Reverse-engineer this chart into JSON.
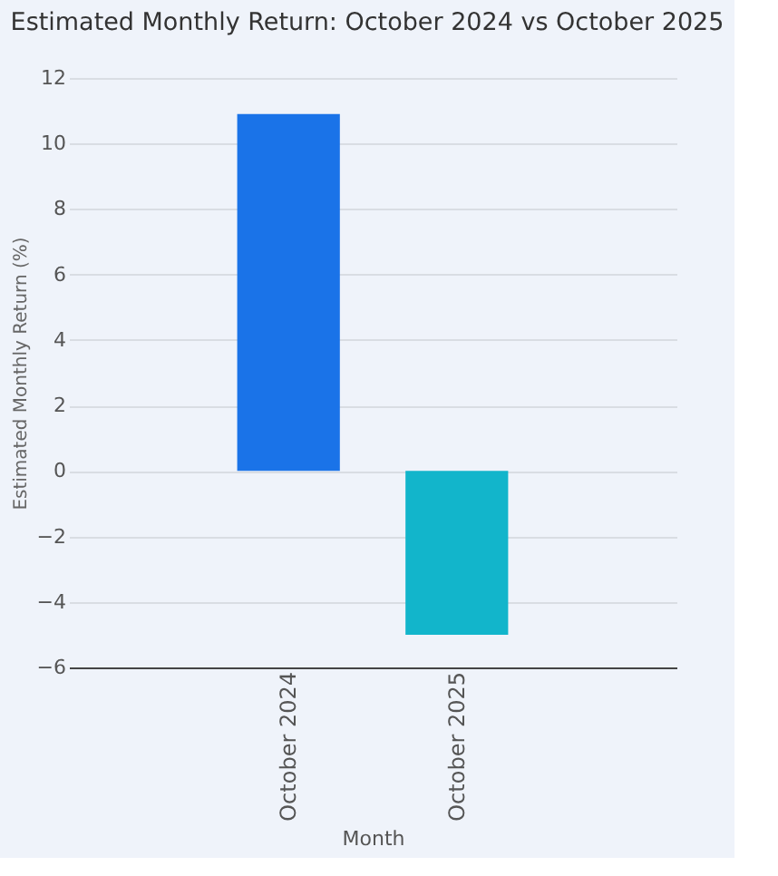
{
  "chart_data": {
    "type": "bar",
    "title": "Estimated Monthly Return: October 2024 vs October 2025",
    "xlabel": "Month",
    "ylabel": "Estimated Monthly Return (%)",
    "categories": [
      "October 2024",
      "October 2025"
    ],
    "values": [
      10.9,
      -5.0
    ],
    "colors": [
      "#1a73e8",
      "#12b5cb"
    ],
    "ylim": [
      -6,
      12
    ],
    "yticks": [
      -6,
      -4,
      -2,
      0,
      2,
      4,
      6,
      8,
      10,
      12
    ],
    "grid": "y",
    "legend": false
  }
}
